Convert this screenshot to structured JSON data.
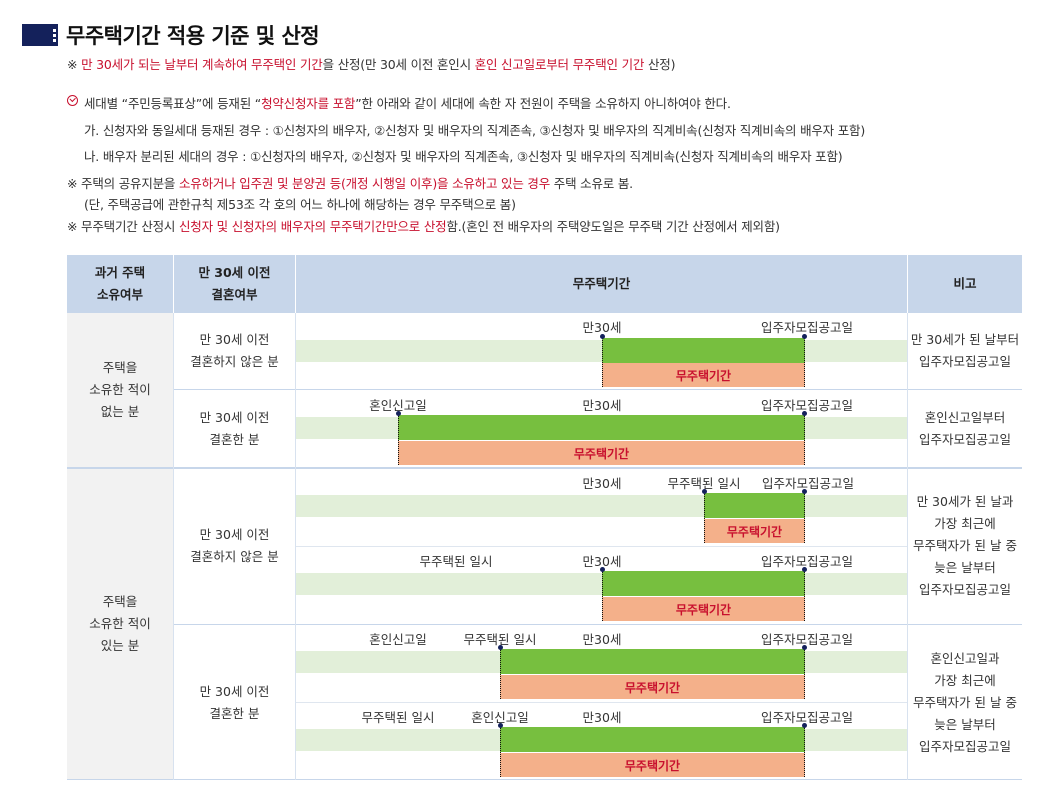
{
  "title": "무주택기간 적용 기준 및 산정",
  "note1": {
    "a": "※ ",
    "b": "만 30세가 되는 날부터 계속하여 무주택인 기간",
    "c": "을 산정(만 30세 이전 혼인시 ",
    "d": "혼인 신고일로부터 무주택인 기간",
    "e": " 산정)"
  },
  "check": {
    "a": "세대별 “주민등록표상”에 등재된 “",
    "b": "청약신청자를 포함",
    "c": "”한 아래와 같이 세대에 속한 자 전원이 주택을 소유하지 아니하여야 한다."
  },
  "item_ga": "가. 신청자와 동일세대 등재된 경우 : ①신청자의 배우자, ②신청자 및 배우자의 직계존속, ③신청자 및 배우자의 직계비속(신청자 직계비속의 배우자 포함)",
  "item_na": "나. 배우자 분리된 세대의 경우 : ①신청자의 배우자, ②신청자 및 배우자의 직계존속, ③신청자 및 배우자의 직계비속(신청자 직계비속의 배우자 포함)",
  "note2": {
    "a": "※ 주택의 공유지분을 ",
    "b": "소유하거나 입주권 및 분양권 등(개정 시행일 이후)을 소유하고 있는 경우",
    "c": " 주택 소유로 봄."
  },
  "note2b": "(단, 주택공급에 관한규칙 제53조 각 호의 어느 하나에 해당하는 경우 무주택으로 봄)",
  "note3": {
    "a": "※ 무주택기간 산정시 ",
    "b": "신청자 및 신청자의 배우자의 무주택기간만으로 산정",
    "c": "함.(혼인 전 배우자의 주택양도일은 무주택 기간 산정에서 제외함)"
  },
  "table": {
    "headers": {
      "col1a": "과거 주택",
      "col1b": "소유여부",
      "col2a": "만 30세 이전",
      "col2b": "결혼여부",
      "col3": "무주택기간",
      "col4": "비고"
    },
    "group1": {
      "a": "주택을",
      "b": "소유한 적이",
      "c": "없는 분"
    },
    "group2": {
      "a": "주택을",
      "b": "소유한 적이",
      "c": "있는 분"
    },
    "unmarried": {
      "a": "만 30세 이전",
      "b": "결혼하지 않은 분"
    },
    "married": {
      "a": "만 30세 이전",
      "b": "결혼한 분"
    },
    "labels": {
      "age30": "만30세",
      "notice": "입주자모집공고일",
      "marriage": "혼인신고일",
      "homeless": "무주택된 일시",
      "period": "무주택기간"
    },
    "remarks": {
      "r1": {
        "a": "만 30세가 된 날부터",
        "b": "입주자모집공고일"
      },
      "r2": {
        "a": "혼인신고일부터",
        "b": "입주자모집공고일"
      },
      "r3": {
        "a": "만 30세가 된 날과",
        "b": "가장 최근에",
        "c": "무주택자가 된 날 중",
        "d": "늦은 날부터",
        "e": "입주자모집공고일"
      },
      "r4": {
        "a": "혼인신고일과",
        "b": "가장 최근에",
        "c": "무주택자가 된 날 중",
        "d": "늦은 날부터",
        "e": "입주자모집공고일"
      }
    }
  },
  "colors": {
    "header_bg": "#c7d6ea",
    "green": "#77bf3f",
    "orange": "#f4b08a",
    "accent_red": "#c8102e",
    "navy": "#14215b"
  }
}
